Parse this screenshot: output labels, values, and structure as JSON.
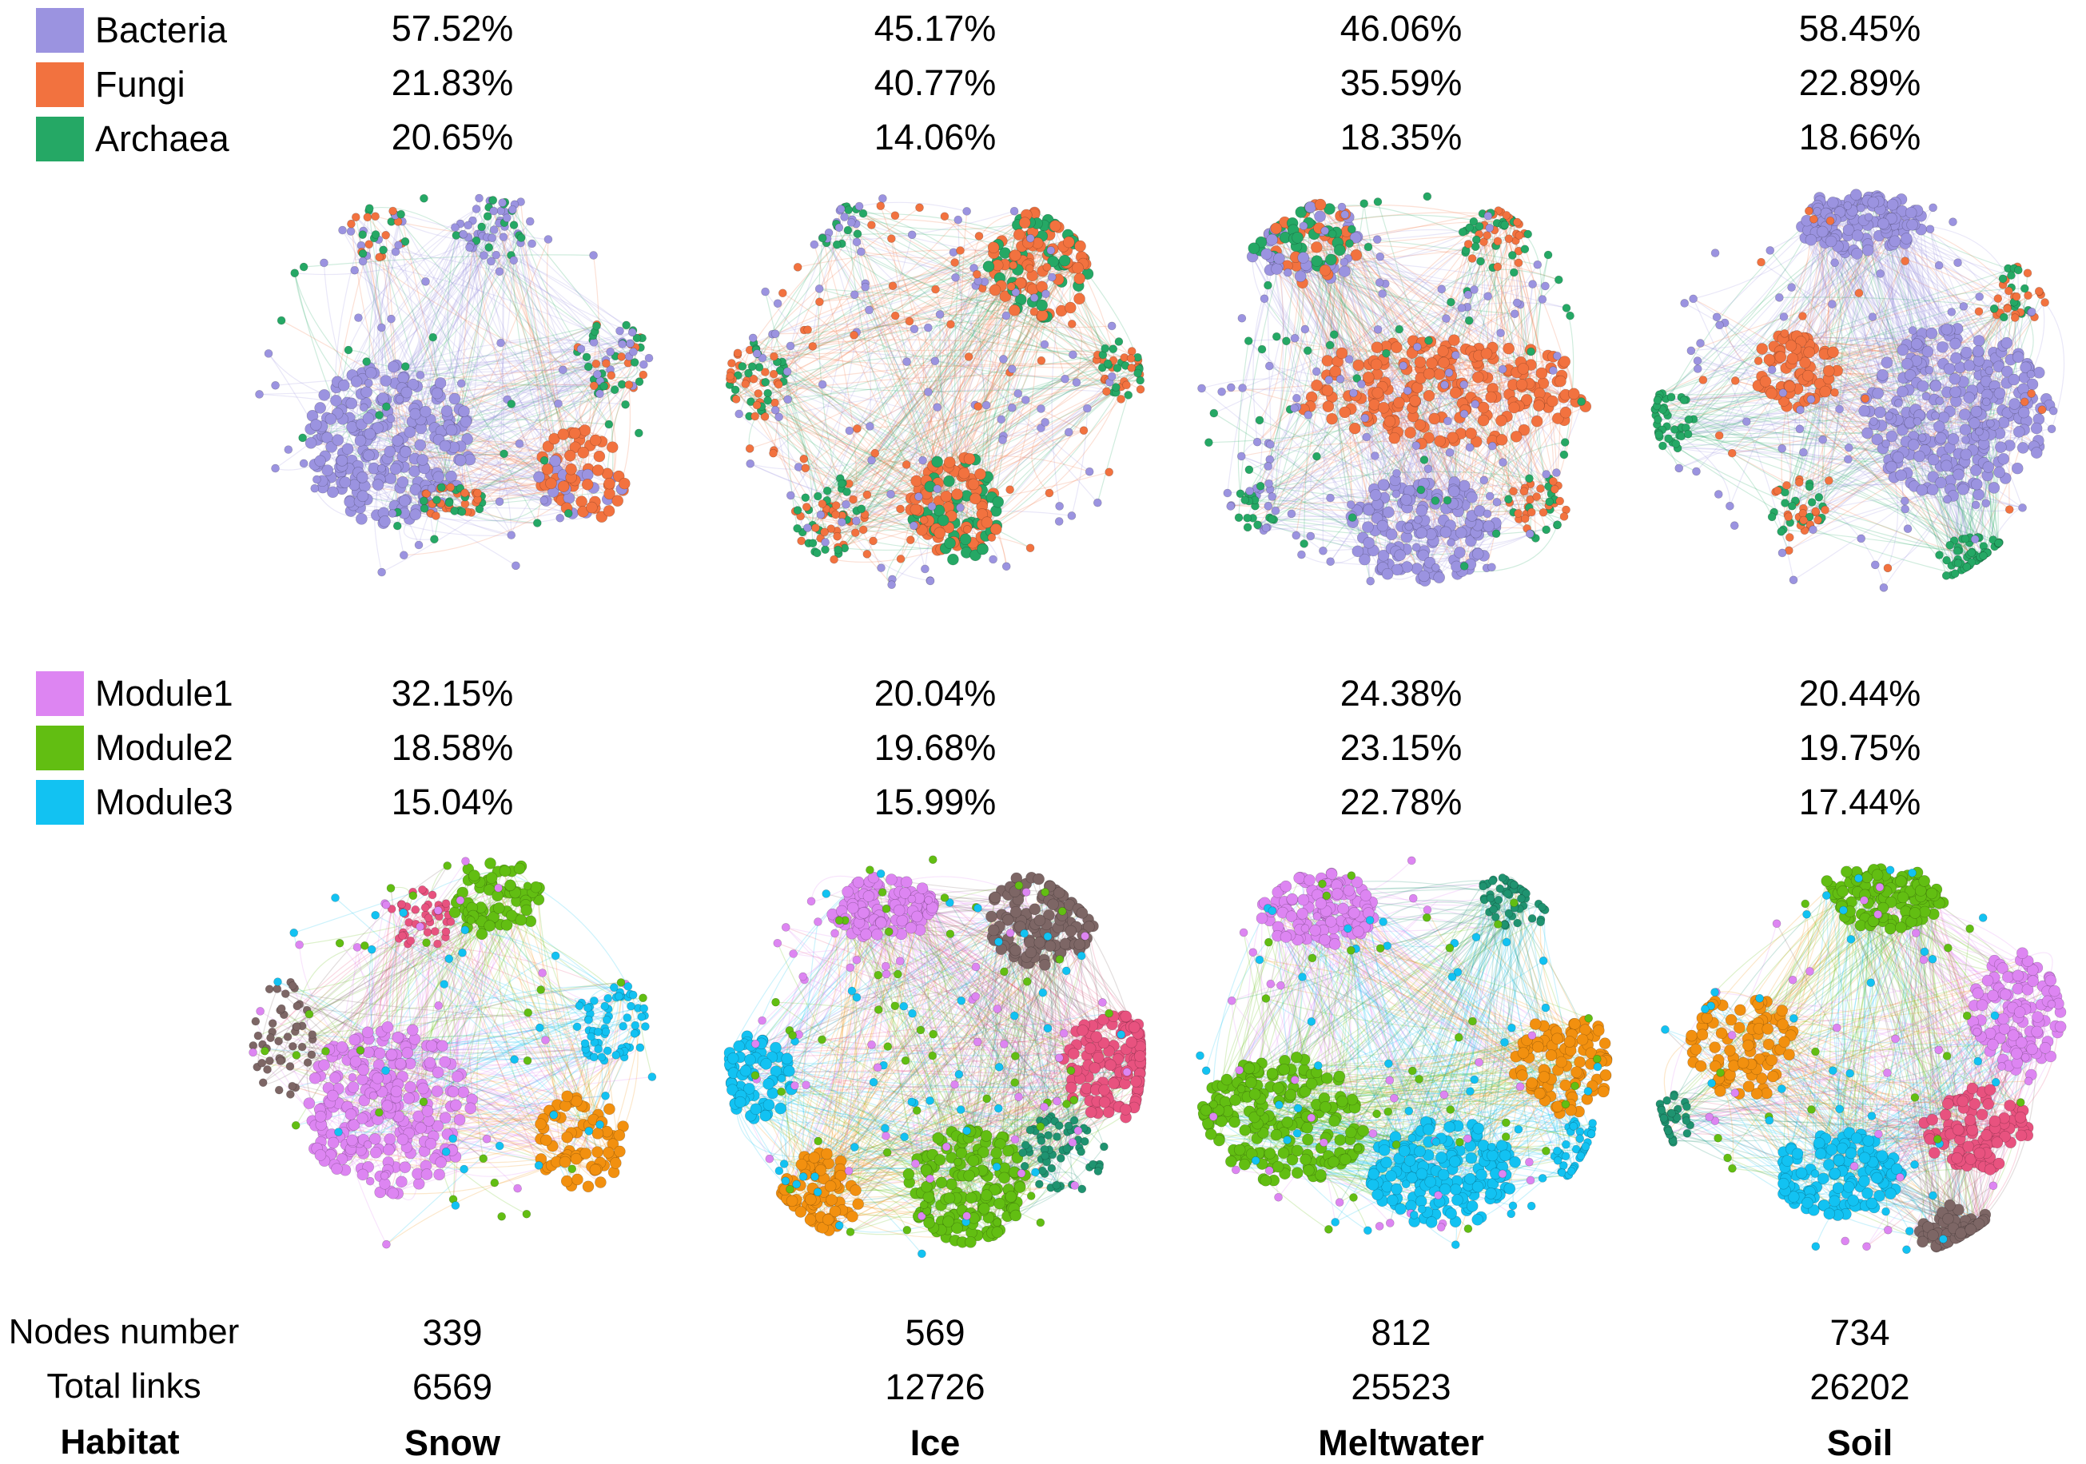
{
  "taxa_legend": [
    {
      "label": "Bacteria",
      "color": "#9b93e0"
    },
    {
      "label": "Fungi",
      "color": "#f2723f"
    },
    {
      "label": "Archaea",
      "color": "#25a865"
    }
  ],
  "module_legend": [
    {
      "label": "Module1",
      "color": "#dd85f2"
    },
    {
      "label": "Module2",
      "color": "#62be12"
    },
    {
      "label": "Module3",
      "color": "#12c2f2"
    }
  ],
  "other_module_colors": [
    "#e8527f",
    "#7d6665",
    "#f2900f",
    "#1f9370"
  ],
  "row_labels": {
    "nodes": "Nodes number",
    "links": "Total links",
    "habitat": "Habitat"
  },
  "habitats": [
    {
      "name": "Snow",
      "taxa_pct": [
        "57.52%",
        "21.83%",
        "20.65%"
      ],
      "module_pct": [
        "32.15%",
        "18.58%",
        "15.04%"
      ],
      "nodes": "339",
      "links": "6569"
    },
    {
      "name": "Ice",
      "taxa_pct": [
        "45.17%",
        "40.77%",
        "14.06%"
      ],
      "module_pct": [
        "20.04%",
        "19.68%",
        "15.99%"
      ],
      "nodes": "569",
      "links": "12726"
    },
    {
      "name": "Meltwater",
      "taxa_pct": [
        "46.06%",
        "35.59%",
        "18.35%"
      ],
      "module_pct": [
        "24.38%",
        "23.15%",
        "22.78%"
      ],
      "nodes": "812",
      "links": "25523"
    },
    {
      "name": "Soil",
      "taxa_pct": [
        "58.45%",
        "22.89%",
        "18.66%"
      ],
      "module_pct": [
        "20.44%",
        "19.75%",
        "17.44%"
      ],
      "nodes": "734",
      "links": "26202"
    }
  ]
}
